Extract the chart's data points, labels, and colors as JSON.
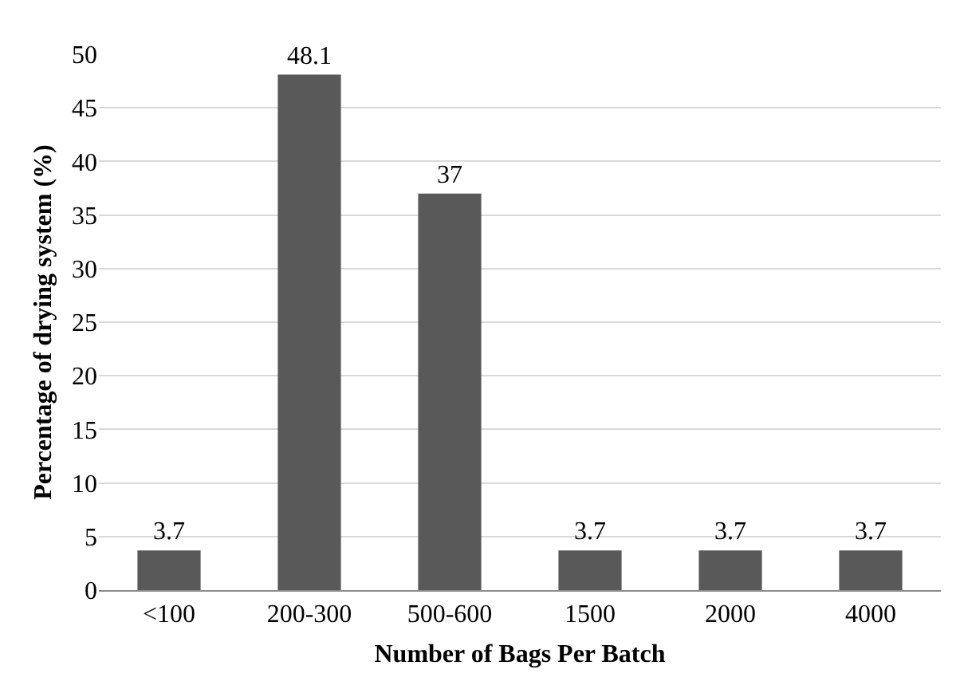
{
  "chart_data": {
    "type": "bar",
    "xlabel": "Number of Bags Per Batch",
    "ylabel": "Percentage of drying system (%)",
    "categories": [
      "<100",
      "200-300",
      "500-600",
      "1500",
      "2000",
      "4000"
    ],
    "values": [
      3.7,
      48.1,
      37,
      3.7,
      3.7,
      3.7
    ],
    "color": "#595959",
    "ylim": [
      0,
      50
    ],
    "yticks": [
      0,
      5,
      10,
      15,
      20,
      25,
      30,
      35,
      40,
      45,
      50
    ],
    "grid": "y",
    "data_labels": true,
    "legend": false
  }
}
